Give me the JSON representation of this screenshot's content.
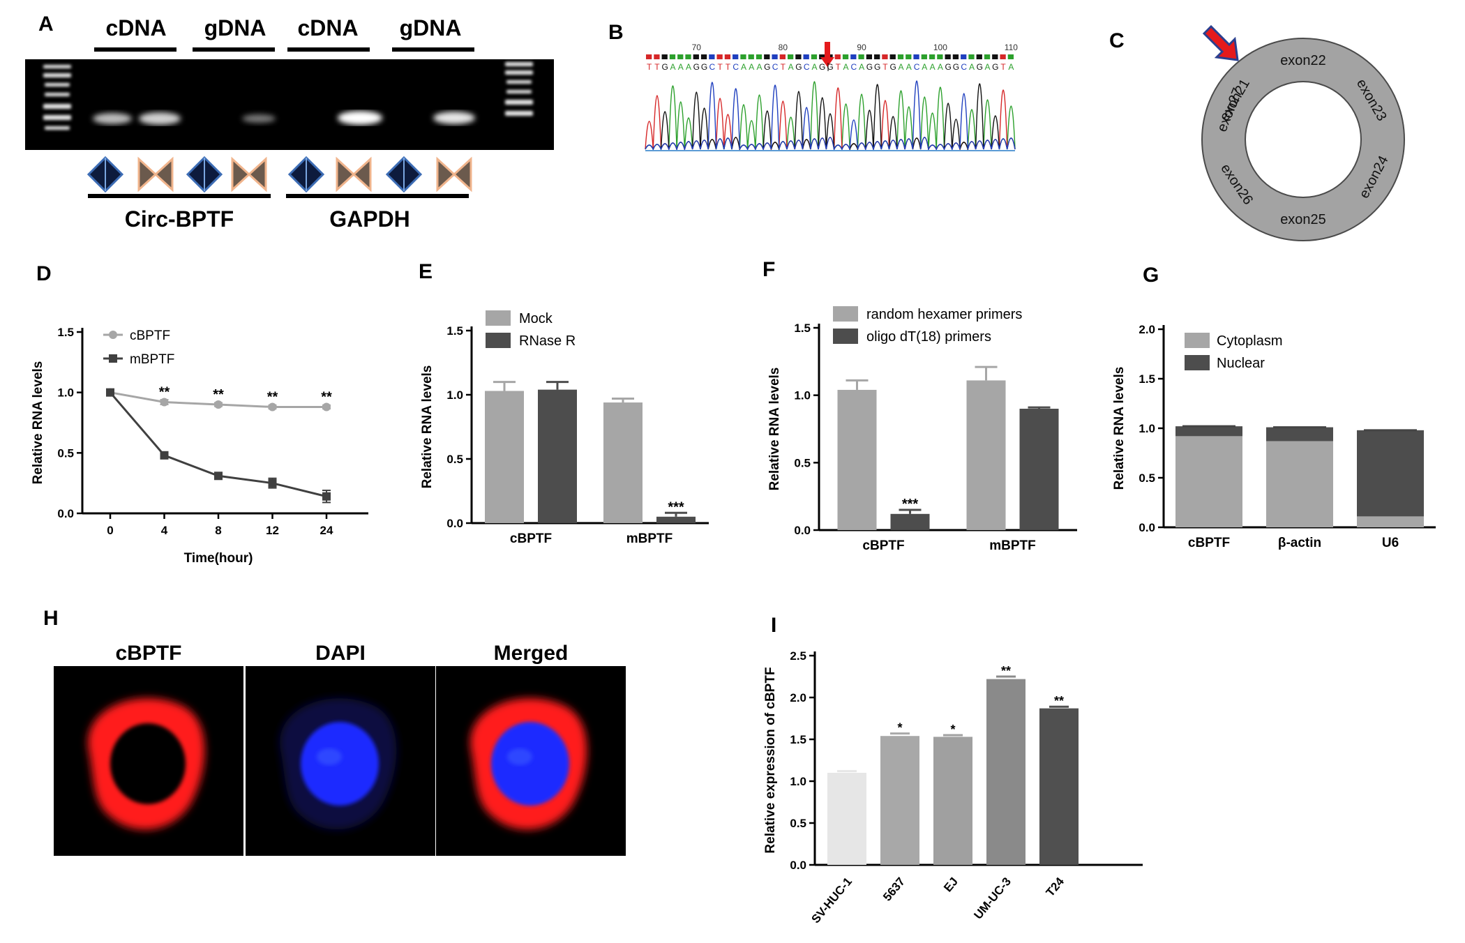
{
  "panels": {
    "A": {
      "letter": "A",
      "lane_labels": [
        "cDNA",
        "gDNA",
        "cDNA",
        "gDNA"
      ],
      "group_labels": [
        "Circ-BPTF",
        "GAPDH"
      ]
    },
    "B": {
      "letter": "B",
      "positions": [
        "70",
        "80",
        "90",
        "100",
        "110"
      ],
      "sequence": "TTGAAAGGCTTCAAAGCTAGCAGGTACAGGTGAACAAAGGCAGAGTA"
    },
    "C": {
      "letter": "C",
      "exons": [
        "exon21",
        "exon22",
        "exon23",
        "exon24",
        "exon25",
        "exon26",
        "exon27"
      ]
    },
    "D": {
      "letter": "D"
    },
    "E": {
      "letter": "E"
    },
    "F": {
      "letter": "F"
    },
    "G": {
      "letter": "G"
    },
    "H": {
      "letter": "H",
      "titles": [
        "cBPTF",
        "DAPI",
        "Merged"
      ]
    },
    "I": {
      "letter": "I"
    }
  },
  "chart_data": [
    {
      "id": "D",
      "type": "line",
      "ylabel": "Relative RNA levels",
      "xlabel": "Time(hour)",
      "ylim": [
        0,
        1.5
      ],
      "yticks": [
        "0.0",
        "0.5",
        "1.0",
        "1.5"
      ],
      "categories": [
        "0",
        "4",
        "8",
        "12",
        "24"
      ],
      "legend_position": "top-left",
      "series": [
        {
          "name": "cBPTF",
          "color": "#a6a6a6",
          "values": [
            1.0,
            0.92,
            0.9,
            0.88,
            0.88
          ],
          "err": [
            0.01,
            0.02,
            0.015,
            0.015,
            0.015
          ]
        },
        {
          "name": "mBPTF",
          "color": "#404040",
          "values": [
            1.0,
            0.48,
            0.31,
            0.25,
            0.14
          ],
          "err": [
            0.01,
            0.02,
            0.02,
            0.04,
            0.05
          ]
        }
      ],
      "annotations": [
        "**",
        "**",
        "**",
        "**"
      ]
    },
    {
      "id": "E",
      "type": "bar",
      "ylabel": "Relative RNA levels",
      "ylim": [
        0,
        1.5
      ],
      "yticks": [
        "0.0",
        "0.5",
        "1.0",
        "1.5"
      ],
      "categories": [
        "cBPTF",
        "mBPTF"
      ],
      "legend_position": "top-left",
      "series": [
        {
          "name": "Mock",
          "color": "#a6a6a6",
          "values": [
            1.03,
            0.94
          ],
          "err": [
            0.07,
            0.03
          ]
        },
        {
          "name": "RNase R",
          "color": "#4d4d4d",
          "values": [
            1.04,
            0.05
          ],
          "err": [
            0.06,
            0.03
          ]
        }
      ],
      "annotations": [
        "",
        "***"
      ]
    },
    {
      "id": "F",
      "type": "bar",
      "ylabel": "Relative RNA levels",
      "ylim": [
        0,
        1.5
      ],
      "yticks": [
        "0.0",
        "0.5",
        "1.0",
        "1.5"
      ],
      "categories": [
        "cBPTF",
        "mBPTF"
      ],
      "legend_position": "top-left",
      "series": [
        {
          "name": "random hexamer primers",
          "color": "#a6a6a6",
          "values": [
            1.04,
            1.11
          ],
          "err": [
            0.07,
            0.1
          ]
        },
        {
          "name": "oligo dT(18) primers",
          "color": "#4d4d4d",
          "values": [
            0.12,
            0.9
          ],
          "err": [
            0.03,
            0.01
          ]
        }
      ],
      "annotations": [
        "***",
        ""
      ]
    },
    {
      "id": "G",
      "type": "bar",
      "stacked": true,
      "ylabel": "Relative RNA levels",
      "ylim": [
        0,
        2.0
      ],
      "yticks": [
        "0.0",
        "0.5",
        "1.0",
        "1.5",
        "2.0"
      ],
      "categories": [
        "cBPTF",
        "β-actin",
        "U6"
      ],
      "legend_position": "top-left",
      "series": [
        {
          "name": "Cytoplasm",
          "color": "#a6a6a6",
          "values": [
            0.92,
            0.87,
            0.11
          ]
        },
        {
          "name": "Nuclear",
          "color": "#4d4d4d",
          "values": [
            0.1,
            0.14,
            0.87
          ]
        }
      ]
    },
    {
      "id": "I",
      "type": "bar",
      "ylabel": "Relative expression of cBPTF",
      "ylim": [
        0,
        2.5
      ],
      "yticks": [
        "0.0",
        "0.5",
        "1.0",
        "1.5",
        "2.0",
        "2.5"
      ],
      "categories": [
        "SV-HUC-1",
        "5637",
        "EJ",
        "UM-UC-3",
        "T24"
      ],
      "colors": [
        "#e6e6e6",
        "#a8a8a8",
        "#a0a0a0",
        "#8a8a8a",
        "#505050"
      ],
      "values": [
        1.1,
        1.54,
        1.53,
        2.22,
        1.87
      ],
      "err": [
        0.02,
        0.03,
        0.02,
        0.03,
        0.02
      ],
      "annotations": [
        "",
        "*",
        "*",
        "**",
        "**"
      ]
    }
  ]
}
